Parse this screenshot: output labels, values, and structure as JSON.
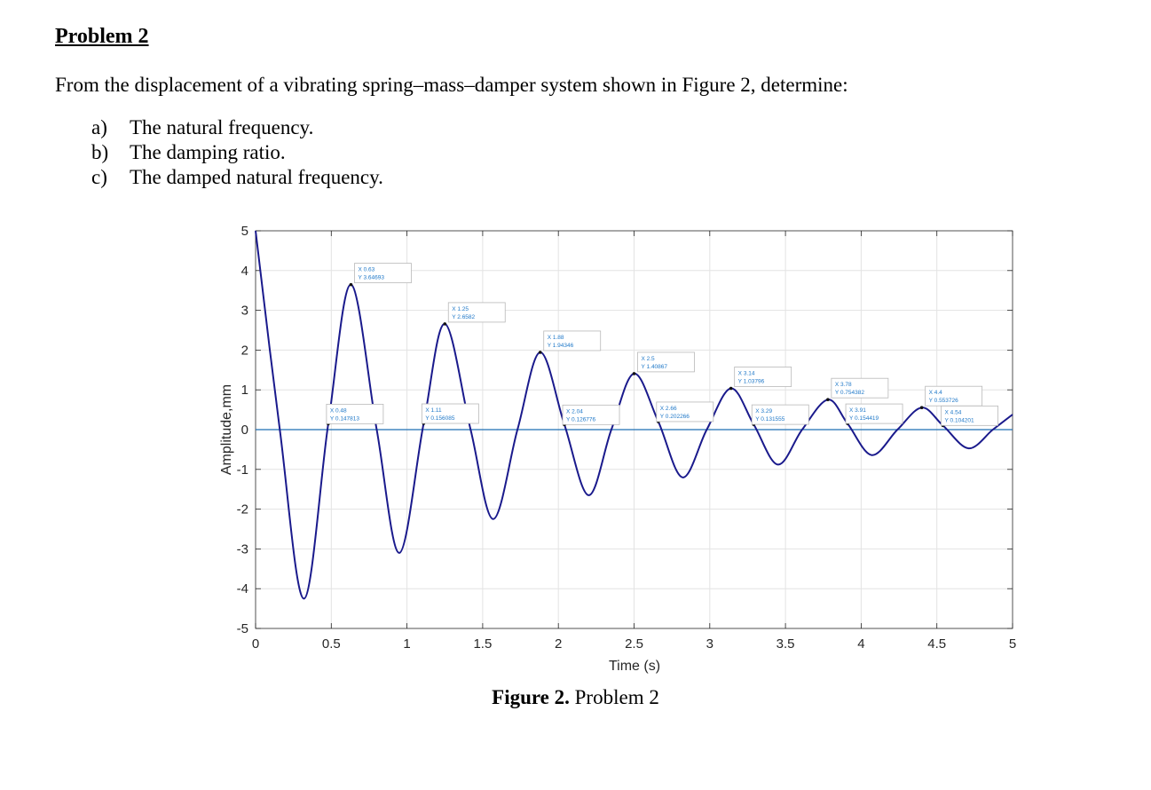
{
  "problem": {
    "heading": "Problem 2",
    "intro": "From the displacement of a vibrating spring–mass–damper system shown in Figure 2, determine:",
    "items": [
      {
        "marker": "a)",
        "text": "The natural frequency."
      },
      {
        "marker": "b)",
        "text": "The damping ratio."
      },
      {
        "marker": "c)",
        "text": "The damped natural frequency."
      }
    ]
  },
  "caption": {
    "label": "Figure 2.",
    "text": " Problem 2"
  },
  "colors": {
    "signal": "#1a1a8c",
    "zero_line": "#1f6fb5",
    "grid": "#e3e3e3",
    "datatip_text": "#1f78c8"
  },
  "chart_data": {
    "type": "line",
    "title": "",
    "xlabel": "Time (s)",
    "ylabel": "Amplitude,mm",
    "xlim": [
      0,
      5
    ],
    "ylim": [
      -5,
      5
    ],
    "xticks": [
      0,
      0.5,
      1,
      1.5,
      2,
      2.5,
      3,
      3.5,
      4,
      4.5,
      5
    ],
    "xtick_labels": [
      "0",
      "0.5",
      "1",
      "1.5",
      "2",
      "2.5",
      "3",
      "3.5",
      "4",
      "4.5",
      "5"
    ],
    "yticks": [
      -5,
      -4,
      -3,
      -2,
      -1,
      0,
      1,
      2,
      3,
      4,
      5
    ],
    "ytick_labels": [
      "-5",
      "-4",
      "-3",
      "-2",
      "-1",
      "0",
      "1",
      "2",
      "3",
      "4",
      "5"
    ],
    "grid": true,
    "series": [
      {
        "x": [
          0,
          0.16,
          0.32,
          0.48,
          0.63,
          0.8,
          0.95,
          1.11,
          1.25,
          1.42,
          1.57,
          1.73,
          1.88,
          2.04,
          2.2,
          2.35,
          2.5,
          2.66,
          2.82,
          2.98,
          3.14,
          3.29,
          3.45,
          3.61,
          3.78,
          3.91,
          4.07,
          4.24,
          4.4,
          4.54,
          4.71,
          4.87,
          5.0
        ],
        "y": [
          5.0,
          0,
          -4.25,
          0.147813,
          3.64693,
          0,
          -3.1,
          0.156085,
          2.6582,
          0,
          -2.25,
          0,
          1.94346,
          0.126776,
          -1.65,
          0,
          1.40867,
          0.202266,
          -1.2,
          0,
          1.03796,
          0.131555,
          -0.88,
          0,
          0.754382,
          0.154419,
          -0.64,
          0,
          0.553726,
          0.104201,
          -0.47,
          0,
          0.38
        ]
      }
    ],
    "zero_line": true,
    "datatips": [
      {
        "x_text": "X 0.63",
        "y_text": "Y 3.64693",
        "x": 0.63,
        "y": 3.64693,
        "side": "above"
      },
      {
        "x_text": "X 0.48",
        "y_text": "Y 0.147813",
        "x": 0.48,
        "y": 0.147813,
        "side": "right"
      },
      {
        "x_text": "X 1.25",
        "y_text": "Y 2.6582",
        "x": 1.25,
        "y": 2.6582,
        "side": "above"
      },
      {
        "x_text": "X 1.11",
        "y_text": "Y 0.156085",
        "x": 1.11,
        "y": 0.156085,
        "side": "right"
      },
      {
        "x_text": "X 1.88",
        "y_text": "Y 1.94346",
        "x": 1.88,
        "y": 1.94346,
        "side": "above"
      },
      {
        "x_text": "X 2.04",
        "y_text": "Y 0.126776",
        "x": 2.04,
        "y": 0.126776,
        "side": "right"
      },
      {
        "x_text": "X 2.5",
        "y_text": "Y 1.40867",
        "x": 2.5,
        "y": 1.40867,
        "side": "above"
      },
      {
        "x_text": "X 2.66",
        "y_text": "Y 0.202266",
        "x": 2.66,
        "y": 0.202266,
        "side": "right"
      },
      {
        "x_text": "X 3.14",
        "y_text": "Y 1.03796",
        "x": 3.14,
        "y": 1.03796,
        "side": "above"
      },
      {
        "x_text": "X 3.29",
        "y_text": "Y 0.131555",
        "x": 3.29,
        "y": 0.131555,
        "side": "right"
      },
      {
        "x_text": "X 3.78",
        "y_text": "Y 0.754382",
        "x": 3.78,
        "y": 0.754382,
        "side": "above"
      },
      {
        "x_text": "X 3.91",
        "y_text": "Y 0.154419",
        "x": 3.91,
        "y": 0.154419,
        "side": "right"
      },
      {
        "x_text": "X 4.4",
        "y_text": "Y 0.553726",
        "x": 4.4,
        "y": 0.553726,
        "side": "above"
      },
      {
        "x_text": "X 4.54",
        "y_text": "Y 0.104201",
        "x": 4.54,
        "y": 0.104201,
        "side": "right"
      }
    ]
  }
}
